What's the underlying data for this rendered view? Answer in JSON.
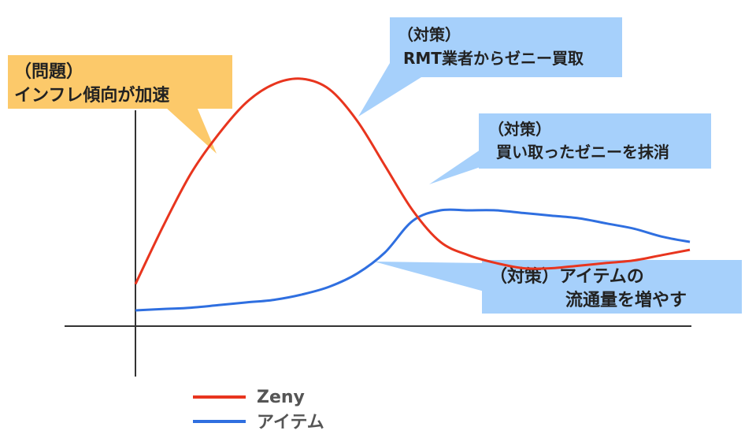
{
  "chart_data": {
    "type": "line",
    "title": "",
    "xlabel": "",
    "ylabel": "",
    "x": [
      0,
      0.05,
      0.1,
      0.15,
      0.2,
      0.25,
      0.3,
      0.35,
      0.4,
      0.45,
      0.5,
      0.55,
      0.6,
      0.65,
      0.7,
      0.75,
      0.8,
      0.85,
      0.9,
      0.95,
      1.0
    ],
    "xlim": [
      0,
      1
    ],
    "ylim": [
      0,
      1
    ],
    "series": [
      {
        "name": "Zeny",
        "color": "#e8351e",
        "values": [
          0.16,
          0.38,
          0.58,
          0.73,
          0.85,
          0.92,
          0.94,
          0.9,
          0.78,
          0.61,
          0.44,
          0.32,
          0.27,
          0.24,
          0.22,
          0.22,
          0.23,
          0.24,
          0.25,
          0.27,
          0.29
        ]
      },
      {
        "name": "アイテム",
        "color": "#2f6fe0",
        "values": [
          0.06,
          0.065,
          0.07,
          0.08,
          0.09,
          0.1,
          0.12,
          0.15,
          0.2,
          0.28,
          0.4,
          0.44,
          0.44,
          0.44,
          0.43,
          0.42,
          0.41,
          0.39,
          0.37,
          0.34,
          0.32
        ]
      }
    ],
    "annotations": [
      {
        "id": "problem",
        "lines": [
          "（問題）",
          "インフレ傾向が加速"
        ],
        "color": "#fcc96a"
      },
      {
        "id": "measure1",
        "lines": [
          "（対策）",
          "RMT業者からゼニー買取"
        ],
        "color": "#a6d0fb"
      },
      {
        "id": "measure2",
        "lines": [
          "（対策）",
          "買い取ったゼニーを抹消"
        ],
        "color": "#a6d0fb"
      },
      {
        "id": "measure3",
        "lines": [
          "（対策）アイテムの",
          "流通量を増やす"
        ],
        "color": "#a6d0fb"
      }
    ],
    "legend": {
      "position": "bottom-left",
      "entries": [
        "Zeny",
        "アイテム"
      ]
    }
  }
}
